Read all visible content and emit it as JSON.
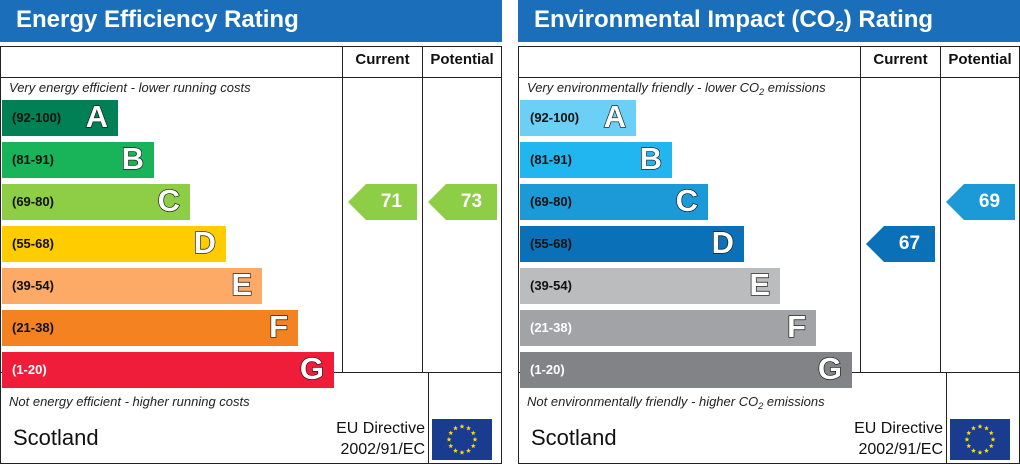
{
  "energy": {
    "title": "Energy Efficiency Rating",
    "col_current": "Current",
    "col_potential": "Potential",
    "top_note": "Very energy efficient - lower running costs",
    "bottom_note": "Not energy efficient - higher running costs",
    "bands": [
      {
        "range": "(92-100)",
        "letter": "A",
        "color": "#008054"
      },
      {
        "range": "(81-91)",
        "letter": "B",
        "color": "#19b459"
      },
      {
        "range": "(69-80)",
        "letter": "C",
        "color": "#8dce46"
      },
      {
        "range": "(55-68)",
        "letter": "D",
        "color": "#ffcc00"
      },
      {
        "range": "(39-54)",
        "letter": "E",
        "color": "#fcaa65"
      },
      {
        "range": "(21-38)",
        "letter": "F",
        "color": "#f58220"
      },
      {
        "range": "(1-20)",
        "letter": "G",
        "color": "#ef1c3a"
      }
    ],
    "current": {
      "value": "71",
      "band": "C",
      "color": "#8dce46"
    },
    "potential": {
      "value": "73",
      "band": "C",
      "color": "#8dce46"
    },
    "country": "Scotland",
    "directive_line1": "EU Directive",
    "directive_line2": "2002/91/EC"
  },
  "environment": {
    "title_prefix": "Environmental Impact (CO",
    "title_sub": "2",
    "title_suffix": ") Rating",
    "col_current": "Current",
    "col_potential": "Potential",
    "top_note_prefix": "Very environmentally friendly - lower CO",
    "top_note_sub": "2",
    "top_note_suffix": " emissions",
    "bottom_note_prefix": "Not environmentally friendly - higher CO",
    "bottom_note_sub": "2",
    "bottom_note_suffix": " emissions",
    "bands": [
      {
        "range": "(92-100)",
        "letter": "A",
        "color": "#6bcff6"
      },
      {
        "range": "(81-91)",
        "letter": "B",
        "color": "#22b6f0"
      },
      {
        "range": "(69-80)",
        "letter": "C",
        "color": "#1b9ad7"
      },
      {
        "range": "(55-68)",
        "letter": "D",
        "color": "#0a71b8"
      },
      {
        "range": "(39-54)",
        "letter": "E",
        "color": "#bbbcbe"
      },
      {
        "range": "(21-38)",
        "letter": "F",
        "color": "#a2a3a6"
      },
      {
        "range": "(1-20)",
        "letter": "G",
        "color": "#828386"
      }
    ],
    "current": {
      "value": "67",
      "band": "D",
      "color": "#0a71b8"
    },
    "potential": {
      "value": "69",
      "band": "C",
      "color": "#1b9ad7"
    },
    "country": "Scotland",
    "directive_line1": "EU Directive",
    "directive_line2": "2002/91/EC"
  }
}
